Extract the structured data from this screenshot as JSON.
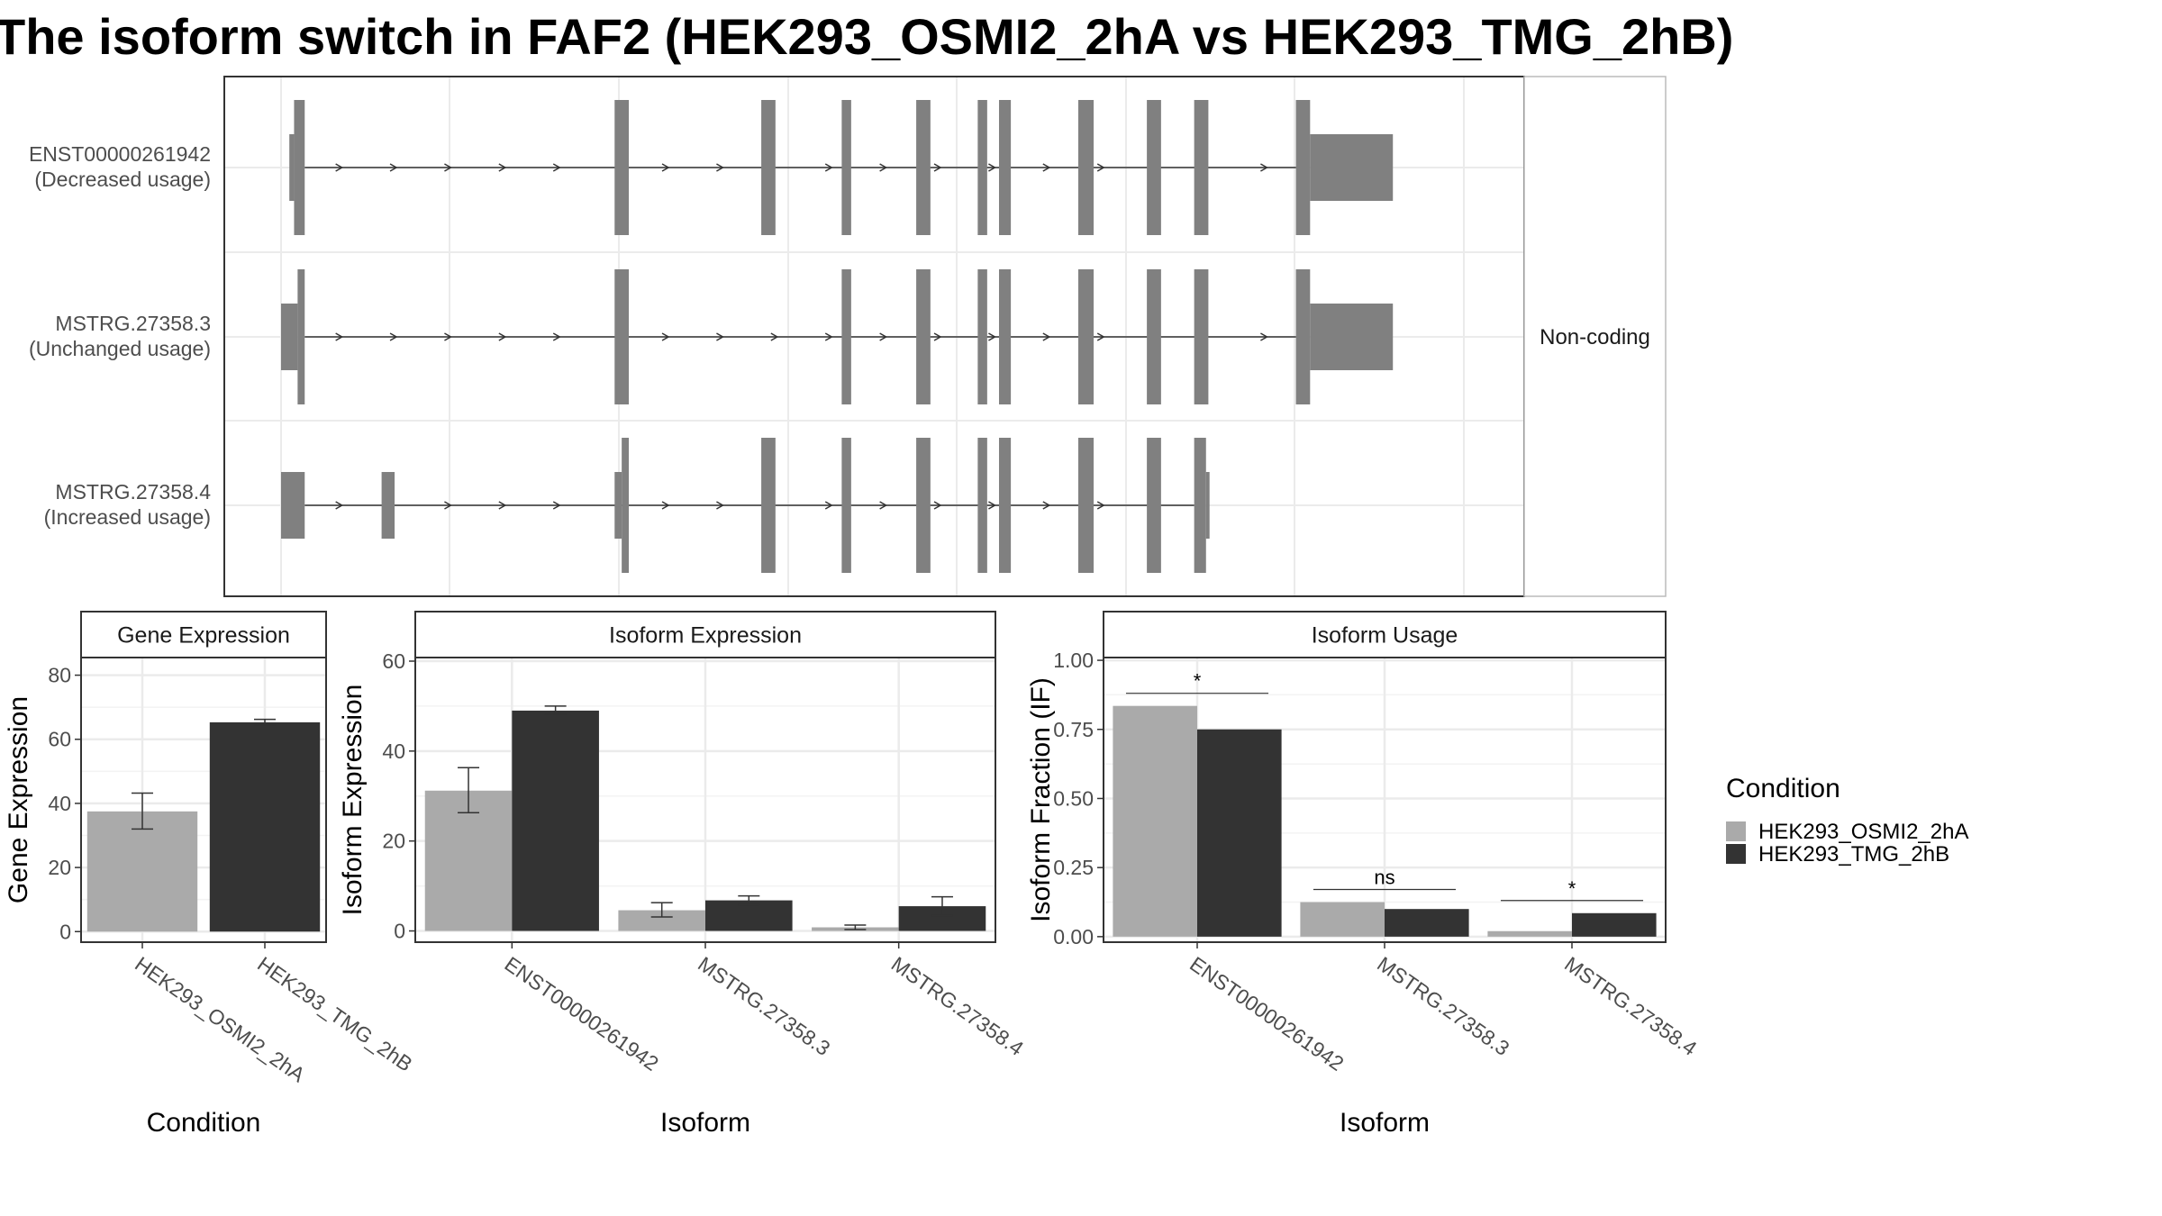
{
  "title": "The isoform switch in FAF2 (HEK293_OSMI2_2hA vs HEK293_TMG_2hB)",
  "colors": {
    "cond_a": "#aaaaaa",
    "cond_b": "#333333",
    "exon": "#808080",
    "grid": "#ebebeb",
    "strip_bg": "#ffffff"
  },
  "chart_data": [
    {
      "type": "gene-structure",
      "title": "The isoform switch in FAF2 (HEK293_OSMI2_2hA vs HEK293_TMG_2hB)",
      "facet_label": "Non-coding",
      "genomic_range": [
        0,
        1000
      ],
      "isoforms": [
        {
          "name": "ENST00000261942",
          "usage": "(Decreased usage)",
          "exons": [
            [
              7,
              11,
              "s"
            ],
            [
              11,
              20,
              "t"
            ],
            [
              282,
              294,
              "t"
            ],
            [
              406,
              418,
              "t"
            ],
            [
              474,
              482,
              "t"
            ],
            [
              537,
              549,
              "t"
            ],
            [
              589,
              597,
              "t"
            ],
            [
              607,
              617,
              "t"
            ],
            [
              674,
              687,
              "t"
            ],
            [
              732,
              744,
              "t"
            ],
            [
              772,
              784,
              "t"
            ],
            [
              858,
              870,
              "t"
            ],
            [
              870,
              940,
              "b"
            ]
          ],
          "intron_span": [
            20,
            858
          ]
        },
        {
          "name": "MSTRG.27358.3",
          "usage": "(Unchanged usage)",
          "exons": [
            [
              0,
              14,
              "b"
            ],
            [
              14,
              20,
              "t"
            ],
            [
              282,
              294,
              "t"
            ],
            [
              474,
              482,
              "t"
            ],
            [
              537,
              549,
              "t"
            ],
            [
              589,
              597,
              "t"
            ],
            [
              607,
              617,
              "t"
            ],
            [
              674,
              687,
              "t"
            ],
            [
              732,
              744,
              "t"
            ],
            [
              772,
              784,
              "t"
            ],
            [
              858,
              870,
              "t"
            ],
            [
              870,
              940,
              "b"
            ]
          ],
          "intron_span": [
            20,
            858
          ]
        },
        {
          "name": "MSTRG.27358.4",
          "usage": "(Increased usage)",
          "exons": [
            [
              0,
              20,
              "b"
            ],
            [
              85,
              96,
              "b"
            ],
            [
              282,
              288,
              "b"
            ],
            [
              288,
              294,
              "t"
            ],
            [
              406,
              418,
              "t"
            ],
            [
              474,
              482,
              "t"
            ],
            [
              537,
              549,
              "t"
            ],
            [
              589,
              597,
              "t"
            ],
            [
              607,
              617,
              "t"
            ],
            [
              674,
              687,
              "t"
            ],
            [
              732,
              744,
              "t"
            ],
            [
              772,
              782,
              "t"
            ],
            [
              782,
              785,
              "b"
            ]
          ],
          "intron_span": [
            20,
            772
          ]
        }
      ]
    },
    {
      "type": "bar",
      "panel_title": "Gene Expression",
      "xlabel": "Condition",
      "ylabel": "Gene Expression",
      "categories": [
        "HEK293_OSMI2_2hA",
        "HEK293_TMG_2hB"
      ],
      "values": [
        37.5,
        65.3
      ],
      "errors": [
        [
          32.0,
          43.2
        ],
        [
          64.4,
          66.2
        ]
      ],
      "yticks": [
        0,
        20,
        40,
        60,
        80
      ],
      "ylim": [
        -3.3,
        85.5
      ]
    },
    {
      "type": "bar",
      "panel_title": "Isoform Expression",
      "xlabel": "Isoform",
      "ylabel": "Isoform Expression",
      "categories": [
        "ENST00000261942",
        "MSTRG.27358.3",
        "MSTRG.27358.4"
      ],
      "series": [
        {
          "name": "HEK293_OSMI2_2hA",
          "values": [
            31.2,
            4.6,
            0.8
          ],
          "errors": [
            [
              26.3,
              36.3
            ],
            [
              3.1,
              6.3
            ],
            [
              0.3,
              1.3
            ]
          ]
        },
        {
          "name": "HEK293_TMG_2hB",
          "values": [
            49.0,
            6.8,
            5.5
          ],
          "errors": [
            [
              48.2,
              50.0
            ],
            [
              5.8,
              7.8
            ],
            [
              3.4,
              7.6
            ]
          ]
        }
      ],
      "yticks": [
        0,
        20,
        40,
        60
      ],
      "ylim": [
        -2.5,
        60.8
      ]
    },
    {
      "type": "bar",
      "panel_title": "Isoform Usage",
      "xlabel": "Isoform",
      "ylabel": "Isoform Fraction (IF)",
      "categories": [
        "ENST00000261942",
        "MSTRG.27358.3",
        "MSTRG.27358.4"
      ],
      "series": [
        {
          "name": "HEK293_OSMI2_2hA",
          "values": [
            0.835,
            0.125,
            0.02
          ]
        },
        {
          "name": "HEK293_TMG_2hB",
          "values": [
            0.75,
            0.1,
            0.085
          ]
        }
      ],
      "significance": [
        "*",
        "ns",
        "*"
      ],
      "yticks": [
        0,
        0.25,
        0.5,
        0.75,
        1.0
      ],
      "ytick_labels": [
        "0.00",
        "0.25",
        "0.50",
        "0.75",
        "1.00"
      ],
      "ylim": [
        -0.02,
        1.01
      ]
    }
  ],
  "legend": {
    "title": "Condition",
    "entries": [
      "HEK293_OSMI2_2hA",
      "HEK293_TMG_2hB"
    ]
  }
}
